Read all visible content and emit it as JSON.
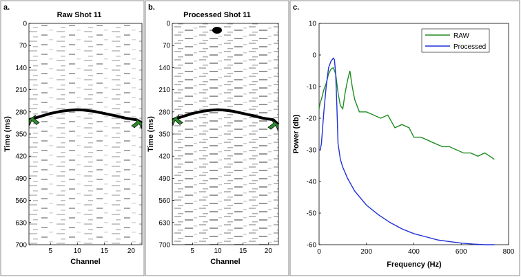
{
  "panels": {
    "a": {
      "letter": "a.",
      "title": "Raw Shot 11",
      "xlabel": "Channel",
      "ylabel": "Time (ms)",
      "x_ticks": [
        "5",
        "10",
        "15",
        "20"
      ],
      "y_ticks": [
        "0",
        "70",
        "140",
        "210",
        "280",
        "350",
        "420",
        "490",
        "560",
        "630",
        "700"
      ]
    },
    "b": {
      "letter": "b.",
      "title": "Processed Shot 11",
      "xlabel": "Channel",
      "ylabel": "Time (ms)",
      "x_ticks": [
        "5",
        "10",
        "15",
        "20"
      ],
      "y_ticks": [
        "0",
        "70",
        "140",
        "210",
        "280",
        "350",
        "420",
        "490",
        "560",
        "630",
        "700"
      ]
    },
    "c": {
      "letter": "c.",
      "xlabel": "Frequency (Hz)",
      "ylabel": "Power (db)",
      "x_ticks": [
        "0",
        "200",
        "400",
        "600",
        "800"
      ],
      "y_ticks": [
        "10",
        "0",
        "-10",
        "-20",
        "-30",
        "-40",
        "-50",
        "-60"
      ],
      "legend": [
        "RAW",
        "Processed"
      ]
    }
  },
  "colors": {
    "raw": "#1f8c1f",
    "processed": "#1f2fd8",
    "pick": "#000000",
    "arrow": "#2e8b2e"
  },
  "chart_data": [
    {
      "type": "heatmap",
      "title": "Raw Shot 11",
      "xlabel": "Channel",
      "ylabel": "Time (ms)",
      "xlim": [
        1,
        22
      ],
      "ylim": [
        700,
        0
      ],
      "picked_arrival": {
        "x": [
          1,
          3,
          5,
          7,
          9,
          10,
          11,
          13,
          15,
          17,
          19,
          21,
          22
        ],
        "y": [
          305,
          295,
          285,
          278,
          274,
          273,
          274,
          278,
          285,
          292,
          300,
          305,
          315
        ]
      }
    },
    {
      "type": "heatmap",
      "title": "Processed Shot 11",
      "xlabel": "Channel",
      "ylabel": "Time (ms)",
      "xlim": [
        1,
        22
      ],
      "ylim": [
        700,
        0
      ],
      "picked_arrival": {
        "x": [
          1,
          3,
          5,
          7,
          9,
          10,
          11,
          13,
          15,
          17,
          19,
          21,
          22
        ],
        "y": [
          305,
          295,
          285,
          278,
          274,
          273,
          274,
          278,
          285,
          292,
          300,
          305,
          320
        ]
      }
    },
    {
      "type": "line",
      "xlabel": "Frequency (Hz)",
      "ylabel": "Power (db)",
      "xlim": [
        0,
        800
      ],
      "ylim": [
        -60,
        10
      ],
      "legend_position": "top-right",
      "series": [
        {
          "name": "RAW",
          "x": [
            0,
            5,
            10,
            20,
            30,
            40,
            50,
            60,
            70,
            80,
            90,
            100,
            110,
            120,
            130,
            140,
            150,
            170,
            200,
            230,
            260,
            290,
            320,
            350,
            380,
            400,
            430,
            460,
            490,
            520,
            550,
            580,
            610,
            640,
            670,
            700,
            720,
            740
          ],
          "y": [
            -17,
            -15,
            -14,
            -11,
            -9,
            -6,
            -4.5,
            -4,
            -6,
            -12,
            -16,
            -17,
            -12,
            -8,
            -5,
            -10,
            -14,
            -18,
            -18,
            -19,
            -20,
            -19,
            -23,
            -22,
            -23,
            -26,
            -26,
            -27,
            -28,
            -29,
            -29,
            -30,
            -31,
            -31,
            -32,
            -31,
            -32,
            -33
          ]
        },
        {
          "name": "Processed",
          "x": [
            0,
            5,
            10,
            20,
            30,
            40,
            50,
            60,
            65,
            70,
            75,
            80,
            90,
            100,
            120,
            150,
            200,
            250,
            300,
            350,
            400,
            450,
            500,
            550,
            600,
            650,
            700,
            740
          ],
          "y": [
            -30,
            -30,
            -28,
            -18,
            -10,
            -4,
            -2,
            -1,
            -1.5,
            -6,
            -16,
            -28,
            -33,
            -35.5,
            -39,
            -43,
            -47.5,
            -50.5,
            -53,
            -55,
            -56.5,
            -57.5,
            -58.5,
            -59,
            -59.5,
            -59.8,
            -60,
            -60
          ]
        }
      ]
    }
  ]
}
